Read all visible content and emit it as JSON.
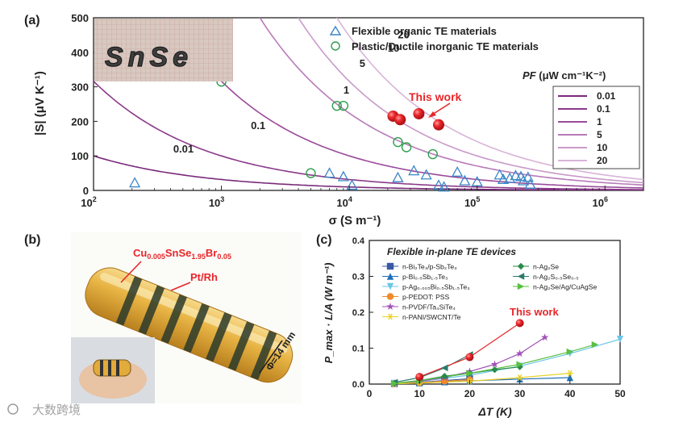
{
  "panel_labels": {
    "a": "(a)",
    "b": "(b)",
    "c": "(c)"
  },
  "colors": {
    "curve": "#8e3a8e",
    "flexible_organic": "#3a86c8",
    "plastic_ductile": "#2e9e4e",
    "this_work": "#e8262a",
    "axis": "#222222"
  },
  "chart_data": [
    {
      "id": "a",
      "type": "scatter",
      "xscale": "log",
      "xlim": [
        100,
        2000000
      ],
      "ylim": [
        0,
        500
      ],
      "xlabel": "σ (S m⁻¹)",
      "ylabel": "|S| (μV K⁻¹)",
      "xticks": [
        {
          "value": 100,
          "mantissa": "10",
          "exp": "2"
        },
        {
          "value": 1000,
          "mantissa": "10",
          "exp": "3"
        },
        {
          "value": 10000,
          "mantissa": "10",
          "exp": "4"
        },
        {
          "value": 100000,
          "mantissa": "10",
          "exp": "5"
        },
        {
          "value": 1000000,
          "mantissa": "10",
          "exp": "6"
        }
      ],
      "yticks": [
        0,
        100,
        200,
        300,
        400,
        500
      ],
      "legend_markers": [
        "Flexible organic TE materials",
        "Plastic/Ductile inorganic TE materials"
      ],
      "pf_legend_title_italic": "PF",
      "pf_legend_title_units": " (μW cm⁻¹K⁻²)",
      "pf_curves": [
        {
          "label": "0.01",
          "pf": 0.01,
          "label_x": 420,
          "label_y": 110
        },
        {
          "label": "0.1",
          "pf": 0.1,
          "label_x": 1700,
          "label_y": 178
        },
        {
          "label": "1",
          "pf": 1,
          "label_x": 9000,
          "label_y": 280
        },
        {
          "label": "5",
          "pf": 5,
          "label_x": 12000,
          "label_y": 358
        },
        {
          "label": "10",
          "pf": 10,
          "label_x": 20000,
          "label_y": 402
        },
        {
          "label": "20",
          "pf": 20,
          "label_x": 24000,
          "label_y": 440
        }
      ],
      "annotation": "This work",
      "series": [
        {
          "name": "Flexible organic TE materials",
          "marker": "triangle",
          "points": [
            [
              210,
              22
            ],
            [
              7000,
              50
            ],
            [
              9000,
              40
            ],
            [
              10500,
              15
            ],
            [
              24000,
              37
            ],
            [
              32000,
              57
            ],
            [
              40000,
              45
            ],
            [
              50000,
              15
            ],
            [
              55000,
              10
            ],
            [
              70000,
              53
            ],
            [
              80000,
              28
            ],
            [
              100000,
              25
            ],
            [
              150000,
              45
            ],
            [
              160000,
              32
            ],
            [
              180000,
              35
            ],
            [
              200000,
              43
            ],
            [
              220000,
              40
            ],
            [
              230000,
              28
            ],
            [
              250000,
              38
            ],
            [
              260000,
              18
            ]
          ]
        },
        {
          "name": "Plastic/Ductile inorganic TE materials",
          "marker": "circle",
          "points": [
            [
              1000,
              315
            ],
            [
              5000,
              50
            ],
            [
              8000,
              245
            ],
            [
              9000,
              245
            ],
            [
              24000,
              140
            ],
            [
              28000,
              125
            ],
            [
              45000,
              105
            ]
          ]
        },
        {
          "name": "This work",
          "marker": "sphere",
          "points": [
            [
              22000,
              215
            ],
            [
              25000,
              205
            ],
            [
              35000,
              222
            ],
            [
              50000,
              190
            ]
          ]
        }
      ]
    },
    {
      "id": "c",
      "type": "line",
      "title": "Flexible in-plane TE devices",
      "xlabel": "ΔT (K)",
      "ylabel": "P_max · L/A (W m⁻¹)",
      "xlim": [
        0,
        50
      ],
      "ylim": [
        0,
        0.4
      ],
      "xticks": [
        0,
        10,
        20,
        30,
        40,
        50
      ],
      "yticks": [
        0.0,
        0.1,
        0.2,
        0.3,
        0.4
      ],
      "annotation": "This work",
      "series": [
        {
          "name": "n-Bi₂Te₃/p-Sb₂Te₃",
          "color": "#3a5aa8",
          "marker": "square",
          "x": [
            5,
            10,
            15,
            20
          ],
          "y": [
            0.002,
            0.005,
            0.01,
            0.015
          ]
        },
        {
          "name": "p-Bi₀.₅Sb₁.₅Te₃",
          "color": "#1f6fb8",
          "marker": "triangle",
          "x": [
            5,
            10,
            15,
            20,
            30,
            40
          ],
          "y": [
            0.001,
            0.003,
            0.006,
            0.009,
            0.014,
            0.018
          ]
        },
        {
          "name": "p-Ag₀.₀₀₅Bi₀.₅Sb₁.₅Te₃",
          "color": "#6cc6e8",
          "marker": "triangle-down",
          "x": [
            5,
            10,
            20,
            30,
            40,
            50
          ],
          "y": [
            0.002,
            0.007,
            0.025,
            0.05,
            0.085,
            0.125
          ]
        },
        {
          "name": "p-PEDOT: PSS",
          "color": "#f08a2a",
          "marker": "circle",
          "x": [
            5,
            10,
            15,
            20
          ],
          "y": [
            0.001,
            0.004,
            0.008,
            0.012
          ]
        },
        {
          "name": "n-PVDF/Ta₄SiTe₄",
          "color": "#a050b8",
          "marker": "star",
          "x": [
            5,
            10,
            15,
            20,
            25,
            30,
            35
          ],
          "y": [
            0.002,
            0.008,
            0.018,
            0.035,
            0.055,
            0.085,
            0.13
          ]
        },
        {
          "name": "n-PANI/SWCNT/Te",
          "color": "#e8d22a",
          "marker": "asterisk",
          "x": [
            5,
            10,
            20,
            30,
            40
          ],
          "y": [
            0.001,
            0.003,
            0.008,
            0.018,
            0.03
          ]
        },
        {
          "name": "n-Ag₂Se",
          "color": "#2a8a4a",
          "marker": "diamond",
          "x": [
            5,
            10,
            15,
            20,
            25,
            30
          ],
          "y": [
            0.002,
            0.01,
            0.022,
            0.03,
            0.04,
            0.048
          ]
        },
        {
          "name": "n-Ag₂S₀.₅Se₀.₅",
          "color": "#2a7a6a",
          "marker": "triangle-left",
          "x": [
            5,
            10,
            15,
            20
          ],
          "y": [
            0.005,
            0.018,
            0.045,
            0.082
          ]
        },
        {
          "name": "n-Ag₂Se/Ag/CuAgSe",
          "color": "#58c040",
          "marker": "triangle-right",
          "x": [
            5,
            10,
            20,
            30,
            40,
            45
          ],
          "y": [
            0.002,
            0.01,
            0.03,
            0.055,
            0.09,
            0.11
          ]
        },
        {
          "name": "This work",
          "color": "#e8262a",
          "marker": "sphere",
          "x": [
            10,
            20,
            30
          ],
          "y": [
            0.02,
            0.075,
            0.17
          ]
        }
      ]
    }
  ],
  "photo_a": {
    "caption": "SnSe"
  },
  "photo_b": {
    "formula_parts": [
      {
        "t": "Cu",
        "sub": false
      },
      {
        "t": "0.005",
        "sub": true
      },
      {
        "t": "SnSe",
        "sub": false
      },
      {
        "t": "1.95",
        "sub": true
      },
      {
        "t": "Br",
        "sub": false
      },
      {
        "t": "0.05",
        "sub": true
      }
    ],
    "label_ptrh": "Pt/Rh",
    "label_diameter": "Φ=14 mm"
  },
  "watermark": "大数跨境"
}
